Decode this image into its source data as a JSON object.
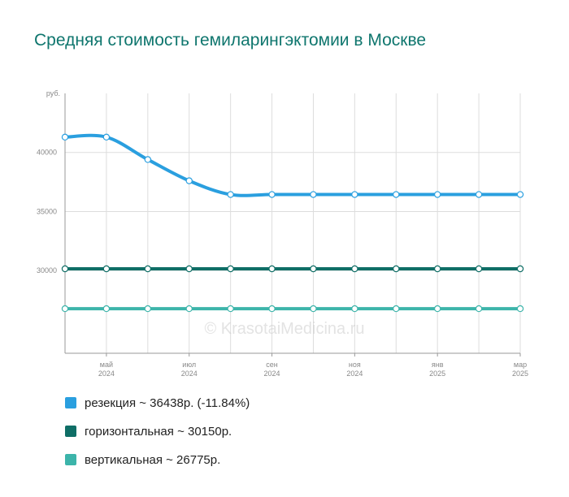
{
  "title": "Средняя стоимость гемиларингэктомии в Москве",
  "watermark": "© KrasotaiMedicina.ru",
  "chart_data": {
    "type": "line",
    "ylabel": "руб.",
    "ylim": [
      23000,
      45000
    ],
    "yticks": [
      30000,
      35000,
      40000
    ],
    "grid": true,
    "legend_position": "bottom",
    "x": [
      "2024-04",
      "2024-05",
      "2024-06",
      "2024-07",
      "2024-08",
      "2024-09",
      "2024-10",
      "2024-11",
      "2024-12",
      "2025-01",
      "2025-02",
      "2025-03"
    ],
    "x_tick_labels": [
      {
        "x": "2024-05",
        "month": "май",
        "year": "2024"
      },
      {
        "x": "2024-07",
        "month": "июл",
        "year": "2024"
      },
      {
        "x": "2024-09",
        "month": "сен",
        "year": "2024"
      },
      {
        "x": "2024-11",
        "month": "ноя",
        "year": "2024"
      },
      {
        "x": "2025-01",
        "month": "янв",
        "year": "2025"
      },
      {
        "x": "2025-03",
        "month": "мар",
        "year": "2025"
      }
    ],
    "series": [
      {
        "name": "резекция",
        "color": "#2a9fdf",
        "values": [
          41300,
          41300,
          39400,
          37600,
          36438,
          36438,
          36438,
          36438,
          36438,
          36438,
          36438,
          36438
        ]
      },
      {
        "name": "горизонтальная",
        "color": "#0f6e66",
        "values": [
          30150,
          30150,
          30150,
          30150,
          30150,
          30150,
          30150,
          30150,
          30150,
          30150,
          30150,
          30150
        ]
      },
      {
        "name": "вертикальная",
        "color": "#3cb4aa",
        "values": [
          26775,
          26775,
          26775,
          26775,
          26775,
          26775,
          26775,
          26775,
          26775,
          26775,
          26775,
          26775
        ]
      }
    ]
  },
  "legend": [
    {
      "label": "резекция ~ 36438р. (-11.84%)",
      "color": "#2a9fdf"
    },
    {
      "label": "горизонтальная ~ 30150р.",
      "color": "#0f6e66"
    },
    {
      "label": "вертикальная ~ 26775р.",
      "color": "#3cb4aa"
    }
  ]
}
